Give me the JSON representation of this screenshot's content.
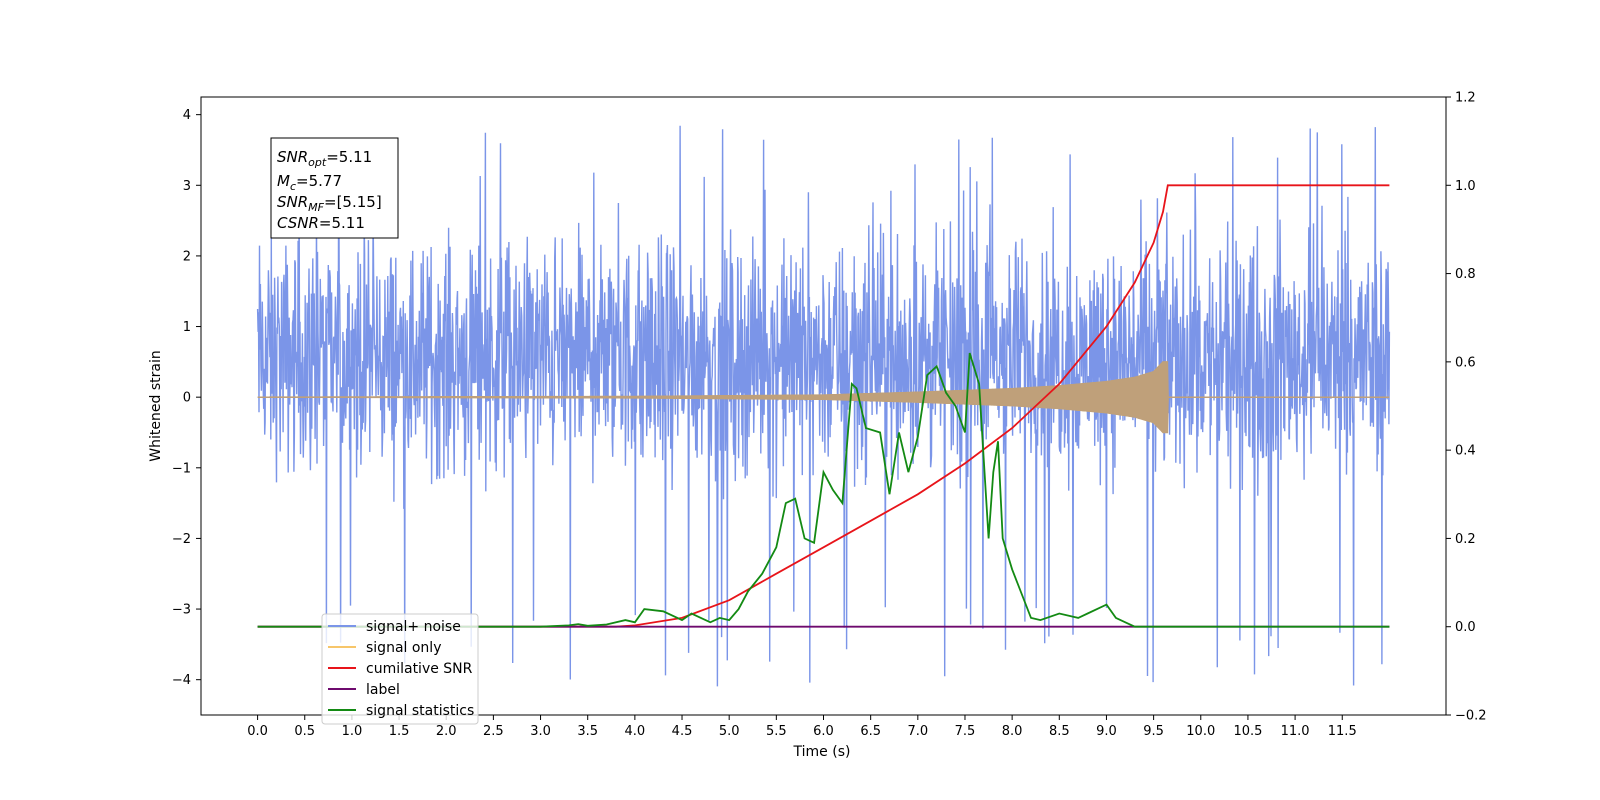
{
  "chart_data": {
    "type": "line",
    "xlabel": "Time (s)",
    "ylabel": "Whitened strain",
    "xlim": [
      -0.6,
      12.6
    ],
    "ylim": [
      -4.5,
      4.25
    ],
    "y2lim": [
      -0.2,
      1.2
    ],
    "grid": false,
    "legend_position": "lower-left",
    "x_ticks": [
      0.0,
      0.5,
      1.0,
      1.5,
      2.0,
      2.5,
      3.0,
      3.5,
      4.0,
      4.5,
      5.0,
      5.5,
      6.0,
      6.5,
      7.0,
      7.5,
      8.0,
      8.5,
      9.0,
      9.5,
      10.0,
      10.5,
      11.0,
      11.5
    ],
    "y_ticks": [
      4,
      3,
      2,
      1,
      0,
      -1,
      -2,
      -3,
      -4
    ],
    "y2_ticks": [
      1.2,
      1.0,
      0.8,
      0.6,
      0.4,
      0.2,
      0.0,
      -0.2
    ],
    "stats_box": {
      "snr_opt": {
        "label": "SNR",
        "sub": "opt",
        "value": "=5.11"
      },
      "mc": {
        "label": "M",
        "sub": "c",
        "value": "=5.77"
      },
      "snr_mf": {
        "label": "SNR",
        "sub": "MF",
        "value": "=[5.15]"
      },
      "csnr": {
        "label": "CSNR",
        "value": "=5.11"
      }
    },
    "legend": [
      {
        "label": "signal+ noise",
        "color": "#7b95e8"
      },
      {
        "label": "signal only",
        "color": "#f7c66a"
      },
      {
        "label": "cumilative SNR",
        "color": "#e8141a"
      },
      {
        "label": "label",
        "color": "#6e0a6e"
      },
      {
        "label": "signal statistics",
        "color": "#138a13"
      }
    ],
    "series": [
      {
        "name": "signal+ noise",
        "axis": "left",
        "style": "noise",
        "color": "#7b95e8",
        "x_range": [
          0.0,
          12.0
        ],
        "band_low": -1.7,
        "band_high": 2.6,
        "peak_low": -4.1,
        "peak_high": 3.85,
        "center": 0.0
      },
      {
        "name": "signal only",
        "axis": "left",
        "style": "chirp",
        "color": "#bfa07a",
        "x_range": [
          0.0,
          12.0
        ],
        "merger_x": 9.65,
        "envelope": {
          "x": [
            0.0,
            4.0,
            6.0,
            7.0,
            8.0,
            8.5,
            9.0,
            9.3,
            9.5,
            9.6,
            9.65
          ],
          "y": [
            0.0,
            0.01,
            0.03,
            0.07,
            0.12,
            0.16,
            0.22,
            0.28,
            0.36,
            0.5,
            0.5
          ]
        }
      },
      {
        "name": "cumilative SNR",
        "axis": "right",
        "style": "line",
        "color": "#e8141a",
        "x": [
          0.0,
          3.8,
          4.0,
          4.5,
          5.0,
          5.5,
          6.0,
          6.5,
          7.0,
          7.5,
          8.0,
          8.5,
          9.0,
          9.3,
          9.5,
          9.6,
          9.65,
          12.0
        ],
        "y": [
          0.0,
          0.0,
          0.003,
          0.02,
          0.06,
          0.12,
          0.18,
          0.24,
          0.3,
          0.37,
          0.45,
          0.55,
          0.68,
          0.78,
          0.87,
          0.94,
          1.0,
          1.0
        ]
      },
      {
        "name": "label",
        "axis": "right",
        "style": "line",
        "color": "#6e0a6e",
        "x": [
          0.0,
          12.0
        ],
        "y": [
          0.0,
          0.0
        ]
      },
      {
        "name": "signal statistics",
        "axis": "right",
        "style": "line",
        "color": "#138a13",
        "x": [
          0.0,
          3.0,
          3.3,
          3.4,
          3.5,
          3.7,
          3.9,
          4.0,
          4.1,
          4.3,
          4.5,
          4.6,
          4.7,
          4.8,
          4.9,
          5.0,
          5.1,
          5.2,
          5.35,
          5.5,
          5.6,
          5.7,
          5.8,
          5.9,
          6.0,
          6.1,
          6.2,
          6.3,
          6.35,
          6.45,
          6.6,
          6.7,
          6.8,
          6.9,
          7.0,
          7.1,
          7.2,
          7.3,
          7.4,
          7.5,
          7.55,
          7.65,
          7.75,
          7.8,
          7.85,
          7.9,
          8.0,
          8.2,
          8.3,
          8.5,
          8.7,
          8.8,
          9.0,
          9.1,
          9.2,
          9.3,
          9.5,
          12.0
        ],
        "y": [
          0.0,
          0.0,
          0.003,
          0.006,
          0.002,
          0.005,
          0.015,
          0.01,
          0.04,
          0.035,
          0.015,
          0.03,
          0.02,
          0.01,
          0.02,
          0.015,
          0.04,
          0.08,
          0.12,
          0.18,
          0.28,
          0.29,
          0.2,
          0.19,
          0.35,
          0.31,
          0.28,
          0.55,
          0.54,
          0.45,
          0.44,
          0.3,
          0.44,
          0.35,
          0.43,
          0.57,
          0.59,
          0.53,
          0.5,
          0.44,
          0.62,
          0.55,
          0.2,
          0.35,
          0.42,
          0.2,
          0.13,
          0.02,
          0.015,
          0.03,
          0.02,
          0.03,
          0.05,
          0.02,
          0.01,
          0.0,
          0.0,
          0.0
        ]
      }
    ]
  }
}
